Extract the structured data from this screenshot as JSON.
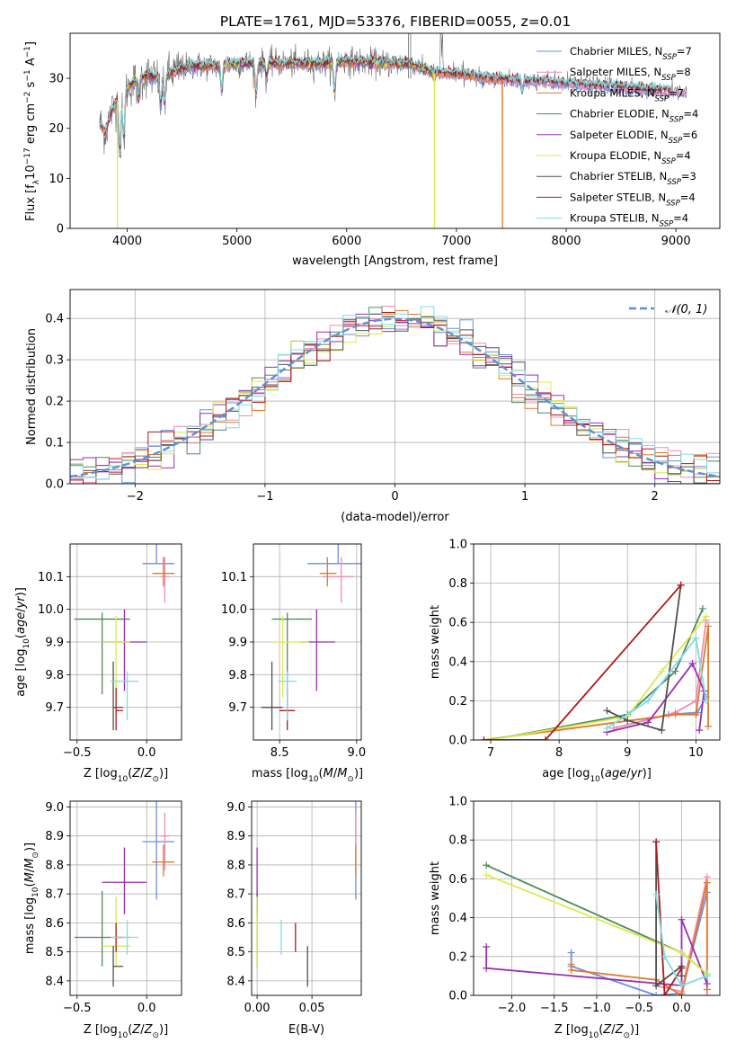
{
  "title": "PLATE=1761, MJD=53376, FIBERID=0055, z=0.01",
  "colors": {
    "chabrier_miles": "#6a8fe0",
    "salpeter_miles": "#f08cb4",
    "kroupa_miles": "#e07a2a",
    "chabrier_elodie": "#4e8a5c",
    "salpeter_elodie": "#9a2fb0",
    "kroupa_elodie": "#d8ec4a",
    "chabrier_stelib": "#505050",
    "salpeter_stelib": "#b01818",
    "kroupa_stelib": "#80dce4",
    "gauss": "#5f8fd6",
    "grid": "#b0b0b0"
  },
  "chart_data": [
    {
      "id": "spectrum",
      "type": "line",
      "title": "PLATE=1761, MJD=53376, FIBERID=0055, z=0.01",
      "xlabel": "wavelength [Angstrom, rest frame]",
      "ylabel": "Flux [f_λ 10^-17 erg cm^-2 s^-1 A^-1]",
      "xlim": [
        3480,
        9400
      ],
      "ylim": [
        0,
        39
      ],
      "xticks": [
        4000,
        5000,
        6000,
        7000,
        8000,
        9000
      ],
      "yticks": [
        0,
        10,
        20,
        30
      ],
      "grid": false,
      "legend_position": "upper-right",
      "continuum": {
        "x": [
          3750,
          3800,
          3850,
          3900,
          3950,
          4000,
          4100,
          4200,
          4300,
          4400,
          4500,
          4600,
          4800,
          5000,
          5200,
          5500,
          5800,
          6000,
          6300,
          6563,
          6800,
          7000,
          7300,
          7600,
          8000,
          8300,
          8600,
          8900,
          9100
        ],
        "y": [
          21,
          19,
          23,
          25,
          26,
          28,
          30,
          30.5,
          30,
          31,
          32,
          32.5,
          32.5,
          33,
          33,
          33,
          33,
          33.5,
          33,
          33,
          31,
          31,
          30,
          29.5,
          29,
          28.5,
          28,
          27.5,
          27.5
        ]
      },
      "absorption_lines": [
        {
          "x": 3934,
          "depth": 12
        },
        {
          "x": 3969,
          "depth": 10
        },
        {
          "x": 4102,
          "depth": 5
        },
        {
          "x": 4305,
          "depth": 6
        },
        {
          "x": 4340,
          "depth": 6
        },
        {
          "x": 4861,
          "depth": 6
        },
        {
          "x": 5175,
          "depth": 7
        },
        {
          "x": 5270,
          "depth": 3
        },
        {
          "x": 5890,
          "depth": 7
        },
        {
          "x": 7600,
          "depth": 2
        }
      ],
      "dropouts": [
        {
          "x": 3910,
          "series": "kroupa_elodie"
        },
        {
          "x": 6800,
          "series": "kroupa_elodie"
        },
        {
          "x": 7420,
          "series": "kroupa_miles"
        }
      ],
      "series": [
        {
          "key": "chabrier_miles",
          "name": "Chabrier MILES, N_SSP=7",
          "name_main": "Chabrier MILES, N",
          "name_sub": "SSP",
          "name_tail": "=7",
          "xrange": [
            3750,
            9100
          ]
        },
        {
          "key": "salpeter_miles",
          "name": "Salpeter MILES, N_SSP=8",
          "name_main": "Salpeter MILES, N",
          "name_sub": "SSP",
          "name_tail": "=8",
          "xrange": [
            3750,
            9100
          ]
        },
        {
          "key": "kroupa_miles",
          "name": "Kroupa MILES, N_SSP=7",
          "name_main": "Kroupa MILES, N",
          "name_sub": "SSP",
          "name_tail": "=7",
          "xrange": [
            3750,
            7420
          ]
        },
        {
          "key": "chabrier_elodie",
          "name": "Chabrier ELODIE, N_SSP=4",
          "name_main": "Chabrier ELODIE, N",
          "name_sub": "SSP",
          "name_tail": "=4",
          "xrange": [
            3900,
            6800
          ]
        },
        {
          "key": "salpeter_elodie",
          "name": "Salpeter ELODIE, N_SSP=6",
          "name_main": "Salpeter ELODIE, N",
          "name_sub": "SSP",
          "name_tail": "=6",
          "xrange": [
            3900,
            6800
          ]
        },
        {
          "key": "kroupa_elodie",
          "name": "Kroupa ELODIE, N_SSP=4",
          "name_main": "Kroupa ELODIE, N",
          "name_sub": "SSP",
          "name_tail": "=4",
          "xrange": [
            3900,
            6800
          ]
        },
        {
          "key": "chabrier_stelib",
          "name": "Chabrier STELIB, N_SSP=3",
          "name_main": "Chabrier STELIB, N",
          "name_sub": "SSP",
          "name_tail": "=3",
          "xrange": [
            3750,
            8950
          ]
        },
        {
          "key": "salpeter_stelib",
          "name": "Salpeter STELIB, N_SSP=4",
          "name_main": "Salpeter STELIB, N",
          "name_sub": "SSP",
          "name_tail": "=4",
          "xrange": [
            3750,
            8950
          ]
        },
        {
          "key": "kroupa_stelib",
          "name": "Kroupa STELIB, N_SSP=4",
          "name_main": "Kroupa STELIB, N",
          "name_sub": "SSP",
          "name_tail": "=4",
          "xrange": [
            3750,
            8950
          ]
        }
      ]
    },
    {
      "id": "residuals",
      "type": "histogram",
      "xlabel": "(data-model)/error",
      "ylabel": "Normed distribution",
      "xlim": [
        -2.5,
        2.5
      ],
      "ylim": [
        0,
        0.47
      ],
      "xticks": [
        -2,
        -1,
        0,
        1,
        2
      ],
      "yticks": [
        0.0,
        0.1,
        0.2,
        0.3,
        0.4
      ],
      "grid": true,
      "legend_position": "upper-right",
      "gauss_label": "𝒩(0, 1)",
      "bin_width": 0.1,
      "bin_start": -2.5
    },
    {
      "id": "age_vs_Z",
      "type": "errorbar",
      "xlabel": "Z [log10(Z/Z⊙)]",
      "ylabel": "age  [log10(age/yr)]",
      "xlim": [
        -0.55,
        0.25
      ],
      "ylim": [
        9.6,
        10.2
      ],
      "xticks": [
        -0.5,
        0.0
      ],
      "xticklabels": [
        "−0.5",
        "0.0"
      ],
      "yticks": [
        9.7,
        9.8,
        9.9,
        10.0,
        10.1
      ],
      "grid": true
    },
    {
      "id": "age_vs_mass",
      "type": "errorbar",
      "xlabel": "mass [log10(M/M⊙)]",
      "xlim": [
        8.33,
        9.03
      ],
      "ylim": [
        9.6,
        10.2
      ],
      "xticks": [
        8.5,
        9.0
      ],
      "yticks": [
        9.7,
        9.8,
        9.9,
        10.0,
        10.1
      ],
      "grid": true
    },
    {
      "id": "weight_vs_age",
      "type": "line",
      "xlabel": "age  [log10(age/yr)]",
      "ylabel": "mass weight",
      "xlim": [
        6.75,
        10.35
      ],
      "ylim": [
        0,
        1
      ],
      "xticks": [
        7,
        8,
        9,
        10
      ],
      "yticks": [
        0.0,
        0.2,
        0.4,
        0.6,
        0.8,
        1.0
      ],
      "grid": true
    },
    {
      "id": "mass_vs_Z",
      "type": "errorbar",
      "xlabel": "Z [log10(Z/Z⊙)]",
      "ylabel": "mass [log10(M/M⊙)]",
      "xlim": [
        -0.55,
        0.25
      ],
      "ylim": [
        8.35,
        9.02
      ],
      "xticks": [
        -0.5,
        0.0
      ],
      "xticklabels": [
        "−0.5",
        "0.0"
      ],
      "yticks": [
        8.4,
        8.5,
        8.6,
        8.7,
        8.8,
        8.9,
        9.0
      ],
      "grid": true
    },
    {
      "id": "mass_vs_ebv",
      "type": "errorbar",
      "xlabel": "E(B-V)",
      "xlim": [
        -0.005,
        0.095
      ],
      "ylim": [
        8.35,
        9.02
      ],
      "xticks": [
        0.0,
        0.05
      ],
      "xticklabels": [
        "0.00",
        "0.05"
      ],
      "yticks": [
        8.4,
        8.5,
        8.6,
        8.7,
        8.8,
        8.9,
        9.0
      ],
      "grid": true
    },
    {
      "id": "weight_vs_Z",
      "type": "line",
      "xlabel": "Z [log10(Z/Z⊙)]",
      "ylabel": "mass weight",
      "xlim": [
        -2.45,
        0.45
      ],
      "ylim": [
        0,
        1
      ],
      "xticks": [
        -2.0,
        -1.5,
        -1.0,
        -0.5,
        0.0
      ],
      "xticklabels": [
        "−2.0",
        "−1.5",
        "−1.0",
        "−0.5",
        "0.0"
      ],
      "yticks": [
        0.0,
        0.2,
        0.4,
        0.6,
        0.8,
        1.0
      ],
      "grid": true
    }
  ],
  "fits": [
    {
      "key": "chabrier_miles",
      "Z": 0.07,
      "Zerr": [
        0.1,
        0.13
      ],
      "age": 10.14,
      "ageerr": [
        0.0,
        0.06
      ],
      "mass": 8.88,
      "masserr": [
        0.2,
        0.18
      ],
      "ebv": 0.09,
      "ebverr": [
        0.0,
        0.0
      ],
      "w_age": [
        [
          8.8,
          0.06
        ],
        [
          9.6,
          0.13
        ],
        [
          10.02,
          0.14
        ],
        [
          10.15,
          0.22
        ]
      ],
      "w_Z": [
        [
          -1.3,
          0.22
        ],
        [
          -1.3,
          0.15
        ],
        [
          -0.3,
          0.0
        ],
        [
          0.0,
          0.01
        ],
        [
          0.3,
          0.53
        ]
      ]
    },
    {
      "key": "salpeter_miles",
      "Z": 0.13,
      "Zerr": [
        0.03,
        0.03
      ],
      "age": 10.1,
      "ageerr": [
        0.08,
        0.06
      ],
      "mass": 8.9,
      "masserr": [
        0.12,
        0.08
      ],
      "ebv": 0.09,
      "ebverr": [
        0.0,
        0.0
      ],
      "w_age": [
        [
          8.8,
          0.06
        ],
        [
          9.7,
          0.14
        ],
        [
          10.0,
          0.2
        ],
        [
          10.15,
          0.61
        ]
      ],
      "w_Z": [
        [
          -0.3,
          0.05
        ],
        [
          0.0,
          0.02
        ],
        [
          0.3,
          0.61
        ],
        [
          0.3,
          0.0
        ]
      ]
    },
    {
      "key": "kroupa_miles",
      "Z": 0.12,
      "Zerr": [
        0.08,
        0.08
      ],
      "age": 10.11,
      "ageerr": [
        0.04,
        0.05
      ],
      "mass": 8.81,
      "masserr": [
        0.05,
        0.06
      ],
      "ebv": 0.09,
      "ebverr": [
        0.0,
        0.0
      ],
      "w_age": [
        [
          6.9,
          0.0
        ],
        [
          9.7,
          0.13
        ],
        [
          10.0,
          0.13
        ],
        [
          10.18,
          0.58
        ],
        [
          10.18,
          0.07
        ]
      ],
      "w_Z": [
        [
          -1.3,
          0.16
        ],
        [
          -1.3,
          0.13
        ],
        [
          -0.3,
          0.08
        ],
        [
          0.0,
          0.0
        ],
        [
          0.3,
          0.58
        ],
        [
          0.3,
          0.03
        ]
      ]
    },
    {
      "key": "chabrier_elodie",
      "Z": -0.32,
      "Zerr": [
        0.2,
        0.2
      ],
      "age": 9.97,
      "ageerr": [
        0.23,
        0.02
      ],
      "mass": 8.55,
      "masserr": [
        0.1,
        0.16
      ],
      "ebv": 0.0,
      "ebverr": [
        0.0,
        0.0
      ],
      "w_age": [
        [
          7.0,
          0.0
        ],
        [
          9.0,
          0.13
        ],
        [
          9.7,
          0.35
        ],
        [
          10.1,
          0.67
        ]
      ],
      "w_Z": [
        [
          -2.3,
          0.67
        ],
        [
          0.0,
          0.22
        ],
        [
          0.3,
          0.11
        ]
      ]
    },
    {
      "key": "salpeter_elodie",
      "Z": -0.16,
      "Zerr": [
        0.16,
        0.16
      ],
      "age": 9.9,
      "ageerr": [
        0.15,
        0.1
      ],
      "mass": 8.74,
      "masserr": [
        0.11,
        0.12
      ],
      "ebv": 0.0,
      "ebverr": [
        0.0,
        0.0
      ],
      "w_age": [
        [
          8.7,
          0.04
        ],
        [
          9.3,
          0.09
        ],
        [
          9.95,
          0.39
        ],
        [
          10.12,
          0.25
        ],
        [
          10.05,
          0.05
        ]
      ],
      "w_Z": [
        [
          -2.3,
          0.25
        ],
        [
          -2.3,
          0.14
        ],
        [
          0.0,
          0.05
        ],
        [
          0.0,
          0.39
        ],
        [
          0.3,
          0.06
        ]
      ]
    },
    {
      "key": "kroupa_elodie",
      "Z": -0.22,
      "Zerr": [
        0.1,
        0.1
      ],
      "age": 9.9,
      "ageerr": [
        0.17,
        0.08
      ],
      "mass": 8.52,
      "masserr": [
        0.07,
        0.17
      ],
      "ebv": 0.0,
      "ebverr": [
        0.0,
        0.0
      ],
      "w_age": [
        [
          7.0,
          0.0
        ],
        [
          9.0,
          0.12
        ],
        [
          9.5,
          0.35
        ],
        [
          10.15,
          0.63
        ]
      ],
      "w_Z": [
        [
          -2.3,
          0.62
        ],
        [
          0.0,
          0.22
        ],
        [
          0.3,
          0.11
        ]
      ]
    },
    {
      "key": "chabrier_stelib",
      "Z": -0.24,
      "Zerr": [
        0.0,
        0.07
      ],
      "age": 9.7,
      "ageerr": [
        0.07,
        0.14
      ],
      "mass": 8.45,
      "masserr": [
        0.07,
        0.07
      ],
      "ebv": 0.046,
      "ebverr": [
        0.0,
        0.0
      ],
      "w_age": [
        [
          8.7,
          0.15
        ],
        [
          9.0,
          0.1
        ],
        [
          9.5,
          0.05
        ],
        [
          9.78,
          0.79
        ]
      ],
      "w_Z": [
        [
          -0.3,
          0.79
        ],
        [
          -0.3,
          0.05
        ],
        [
          0.0,
          0.15
        ],
        [
          0.0,
          0.1
        ]
      ]
    },
    {
      "key": "salpeter_stelib",
      "Z": -0.22,
      "Zerr": [
        0.0,
        0.05
      ],
      "age": 9.69,
      "ageerr": [
        0.06,
        0.07
      ],
      "mass": 8.55,
      "masserr": [
        0.05,
        0.05
      ],
      "ebv": 0.035,
      "ebverr": [
        0.0,
        0.0
      ],
      "w_age": [
        [
          6.9,
          0.0
        ],
        [
          7.8,
          0.0
        ],
        [
          9.78,
          0.79
        ]
      ],
      "w_Z": [
        [
          -0.3,
          0.79
        ],
        [
          -0.2,
          0.0
        ],
        [
          0.0,
          0.14
        ]
      ]
    },
    {
      "key": "kroupa_stelib",
      "Z": -0.14,
      "Zerr": [
        0.12,
        0.08
      ],
      "age": 9.78,
      "ageerr": [
        0.12,
        0.03
      ],
      "mass": 8.55,
      "masserr": [
        0.06,
        0.06
      ],
      "ebv": 0.022,
      "ebverr": [
        0.0,
        0.0
      ],
      "w_age": [
        [
          8.7,
          0.06
        ],
        [
          9.3,
          0.2
        ],
        [
          10.0,
          0.52
        ],
        [
          10.15,
          0.2
        ]
      ],
      "w_Z": [
        [
          -0.3,
          0.52
        ],
        [
          -0.2,
          0.2
        ],
        [
          0.0,
          0.05
        ],
        [
          0.3,
          0.1
        ]
      ]
    }
  ]
}
